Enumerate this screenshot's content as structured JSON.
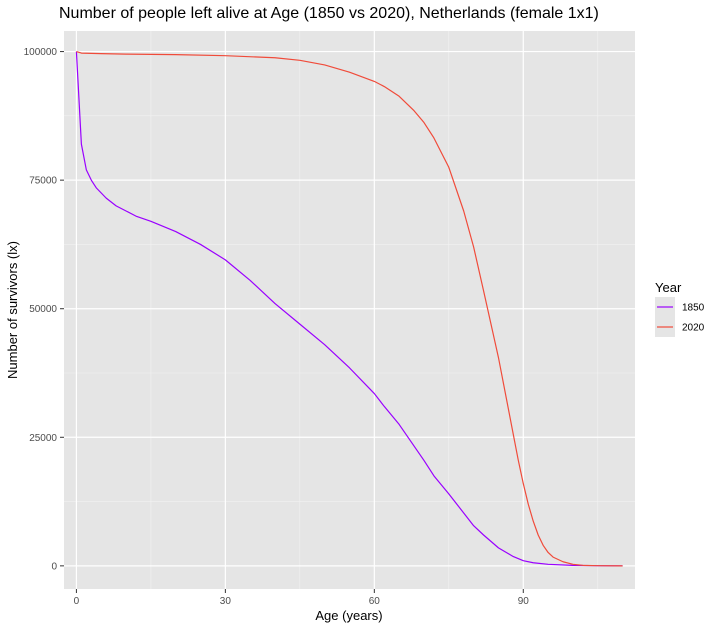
{
  "chart_data": {
    "type": "line",
    "title": "Number of people left alive at Age (1850 vs 2020), Netherlands (female 1x1)",
    "xlabel": "Age (years)",
    "ylabel": "Number of survivors (lx)",
    "xlim": [
      -2.5,
      112.5
    ],
    "ylim": [
      -4500,
      104000
    ],
    "x_ticks": [
      0,
      30,
      60,
      90
    ],
    "x_tick_labels": [
      "0",
      "30",
      "60",
      "90"
    ],
    "y_ticks": [
      0,
      25000,
      50000,
      75000,
      100000
    ],
    "y_tick_labels": [
      "0",
      "25000",
      "50000",
      "75000",
      "100000"
    ],
    "grid": true,
    "legend": {
      "title": "Year",
      "position": "right"
    },
    "series": [
      {
        "name": "1850",
        "color": "#9a00ff",
        "x": [
          0,
          1,
          2,
          3,
          4,
          5,
          6,
          8,
          10,
          12,
          15,
          20,
          25,
          30,
          35,
          40,
          45,
          50,
          55,
          60,
          62,
          65,
          70,
          72,
          75,
          80,
          82,
          85,
          88,
          90,
          92,
          95,
          100,
          105,
          110
        ],
        "y": [
          100000,
          82000,
          77000,
          75000,
          73500,
          72500,
          71500,
          70000,
          69000,
          68000,
          67000,
          65000,
          62500,
          59500,
          55500,
          51000,
          47000,
          43000,
          38500,
          33500,
          31000,
          27500,
          20500,
          17500,
          14000,
          7800,
          6000,
          3500,
          1800,
          1000,
          600,
          300,
          100,
          30,
          0
        ]
      },
      {
        "name": "2020",
        "color": "#f04b3a",
        "x": [
          0,
          1,
          5,
          10,
          20,
          30,
          40,
          45,
          50,
          55,
          60,
          62,
          65,
          68,
          70,
          72,
          75,
          78,
          80,
          82,
          85,
          87,
          88,
          89,
          90,
          91,
          92,
          93,
          94,
          95,
          96,
          98,
          100,
          102,
          105,
          110
        ],
        "y": [
          100000,
          99700,
          99600,
          99500,
          99400,
          99200,
          98800,
          98300,
          97400,
          96000,
          94200,
          93200,
          91300,
          88500,
          86200,
          83200,
          77500,
          69000,
          62000,
          53500,
          40500,
          30500,
          25500,
          20500,
          16000,
          12000,
          8700,
          6000,
          4000,
          2600,
          1700,
          800,
          300,
          100,
          30,
          0
        ]
      }
    ]
  }
}
